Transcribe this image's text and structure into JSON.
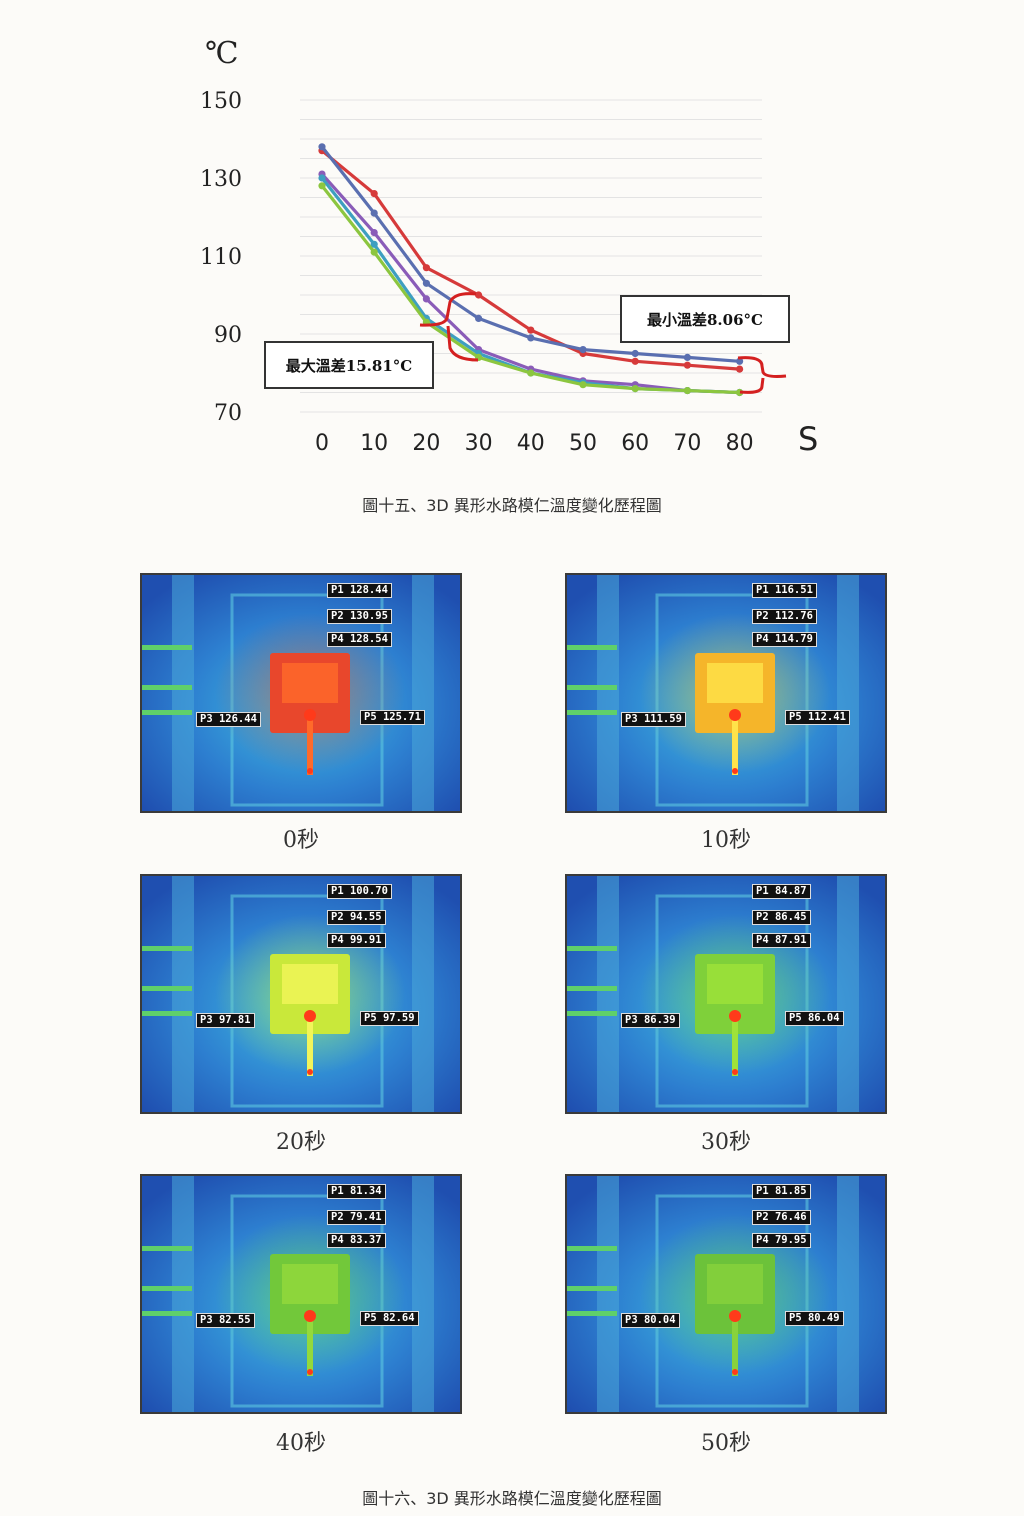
{
  "chart_data": {
    "type": "line",
    "ylabel": "℃",
    "xlabel": "S",
    "ylim": [
      70,
      150
    ],
    "yticks": [
      70,
      90,
      110,
      130,
      150
    ],
    "x": [
      0,
      10,
      20,
      30,
      40,
      50,
      60,
      70,
      80
    ],
    "series": [
      {
        "color": "#d63a3a",
        "values": [
          137,
          126,
          107,
          100,
          91,
          85,
          83,
          82,
          81
        ]
      },
      {
        "color": "#5a6fb0",
        "values": [
          138,
          121,
          103,
          94,
          89,
          86,
          85,
          84,
          83
        ]
      },
      {
        "color": "#8a5cb8",
        "values": [
          131,
          116,
          99,
          86,
          81,
          78,
          77,
          75.5,
          75
        ]
      },
      {
        "color": "#3e9fc0",
        "values": [
          130,
          113,
          94,
          85,
          80,
          77.5,
          76,
          75.5,
          75
        ]
      },
      {
        "color": "#8cc63f",
        "values": [
          128,
          111,
          93,
          84,
          80,
          77,
          76,
          75.5,
          75
        ]
      }
    ],
    "annotations": {
      "max_diff": "最大溫差15.81°C",
      "min_diff": "最小溫差8.06°C"
    },
    "grid": true
  },
  "caption1": "圖十五、3D 異形水路模仁溫度變化歷程圖",
  "caption2": "圖十六、3D 異形水路模仁溫度變化歷程圖",
  "thermal_images": [
    {
      "time": "0秒",
      "core_color": "#e8472c",
      "inner_color": "#ff6a2a",
      "p1": "P1 128.44",
      "p2": "P2 130.95",
      "p4": "P4 128.54",
      "p3": "P3 126.44",
      "p5": "P5 125.71"
    },
    {
      "time": "10秒",
      "core_color": "#f5b52a",
      "inner_color": "#ffe34a",
      "p1": "P1 116.51",
      "p2": "P2 112.76",
      "p4": "P4 114.79",
      "p3": "P3 111.59",
      "p5": "P5 112.41"
    },
    {
      "time": "20秒",
      "core_color": "#c9e83a",
      "inner_color": "#f2f55a",
      "p1": "P1 100.70",
      "p2": "P2 94.55",
      "p4": "P4 99.91",
      "p3": "P3 97.81",
      "p5": "P5 97.59"
    },
    {
      "time": "30秒",
      "core_color": "#7fd03a",
      "inner_color": "#9fe23a",
      "p1": "P1 84.87",
      "p2": "P2 86.45",
      "p4": "P4 87.91",
      "p3": "P3 86.39",
      "p5": "P5 86.04"
    },
    {
      "time": "40秒",
      "core_color": "#72c83a",
      "inner_color": "#93d93c",
      "p1": "P1 81.34",
      "p2": "P2 79.41",
      "p4": "P4 83.37",
      "p3": "P3 82.55",
      "p5": "P5 82.64"
    },
    {
      "time": "50秒",
      "core_color": "#6cc23a",
      "inner_color": "#88d23c",
      "p1": "P1 81.85",
      "p2": "P2 76.46",
      "p4": "P4 79.95",
      "p3": "P3 80.04",
      "p5": "P5 80.49"
    }
  ]
}
